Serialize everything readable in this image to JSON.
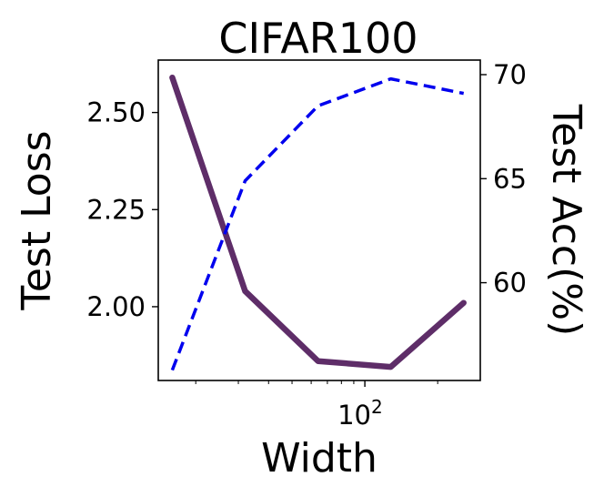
{
  "chart_data": {
    "type": "line",
    "title": "CIFAR100",
    "xlabel": "Width",
    "ylabel_left": "Test Loss",
    "ylabel_right": "Test Acc(%)",
    "x_scale": "log",
    "x": [
      16,
      32,
      64,
      128,
      256
    ],
    "xticks": [
      {
        "value": 100,
        "base": "10",
        "exp": "2"
      }
    ],
    "xlim": [
      14,
      300
    ],
    "ylim_left": [
      1.81,
      2.635
    ],
    "ylim_right": [
      55.3,
      70.7
    ],
    "yticks_left": [
      "2.00",
      "2.25",
      "2.50"
    ],
    "yticks_right": [
      "60",
      "65",
      "70"
    ],
    "grid": false,
    "legend": "none",
    "series": [
      {
        "axis": "left",
        "style": "solid",
        "color": "#5e2d68",
        "values": [
          2.59,
          2.04,
          1.86,
          1.845,
          2.01
        ]
      },
      {
        "axis": "right",
        "style": "dashed",
        "color": "#0000ee",
        "values": [
          55.8,
          64.9,
          68.5,
          69.8,
          69.1
        ]
      }
    ]
  }
}
